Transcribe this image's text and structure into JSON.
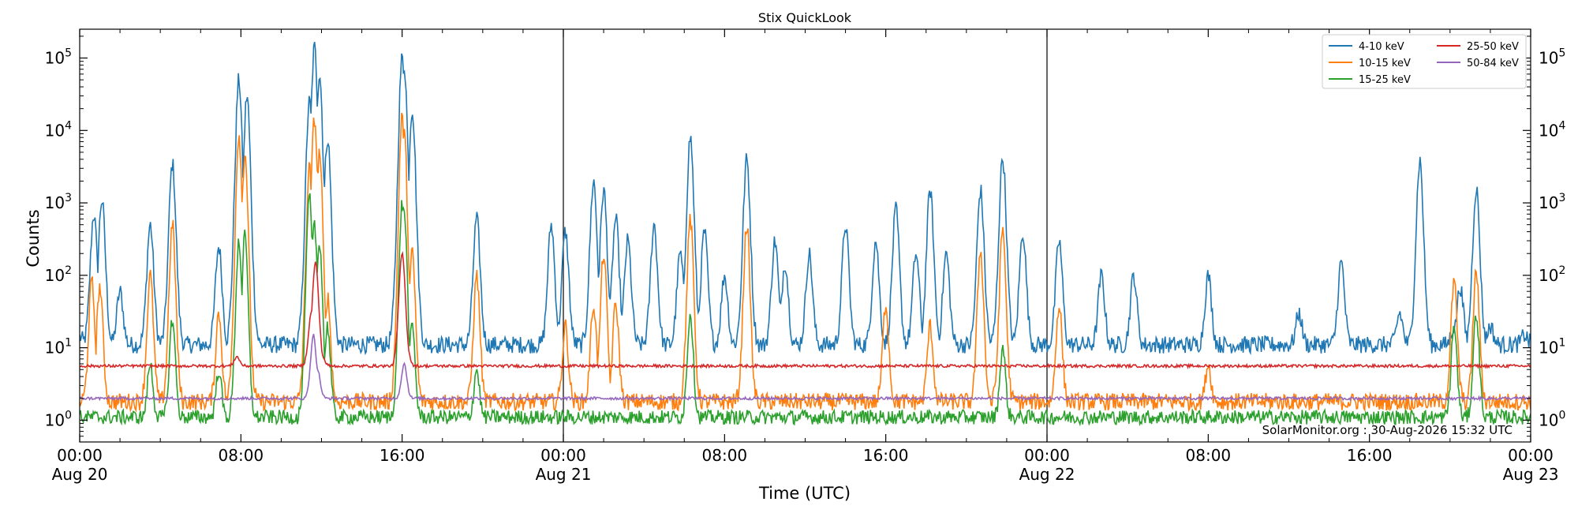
{
  "chart_data": {
    "type": "line",
    "title": "Stix QuickLook",
    "xlabel": "Time (UTC)",
    "ylabel": "Counts",
    "yscale": "log",
    "ylim": [
      0.5,
      250000
    ],
    "xlim_hours": [
      0,
      72
    ],
    "grid": false,
    "legend_position": "top-right",
    "x_ticks": [
      {
        "hour": 0,
        "time": "00:00",
        "date": "Aug 20"
      },
      {
        "hour": 8,
        "time": "08:00",
        "date": ""
      },
      {
        "hour": 16,
        "time": "16:00",
        "date": ""
      },
      {
        "hour": 24,
        "time": "00:00",
        "date": "Aug 21"
      },
      {
        "hour": 32,
        "time": "08:00",
        "date": ""
      },
      {
        "hour": 40,
        "time": "16:00",
        "date": ""
      },
      {
        "hour": 48,
        "time": "00:00",
        "date": "Aug 22"
      },
      {
        "hour": 56,
        "time": "08:00",
        "date": ""
      },
      {
        "hour": 64,
        "time": "16:00",
        "date": ""
      },
      {
        "hour": 72,
        "time": "00:00",
        "date": "Aug 23"
      }
    ],
    "y_ticks": [
      {
        "value": 1,
        "exp": "0"
      },
      {
        "value": 10,
        "exp": "1"
      },
      {
        "value": 100,
        "exp": "2"
      },
      {
        "value": 1000,
        "exp": "3"
      },
      {
        "value": 10000,
        "exp": "4"
      },
      {
        "value": 100000,
        "exp": "5"
      }
    ],
    "day_boundaries_hours": [
      24,
      48
    ],
    "series": [
      {
        "name": "4-10 keV",
        "color": "#1f77b4",
        "baseline": 11,
        "noise": 0.12,
        "x": [
          0,
          0.5,
          0.7,
          1.1,
          2,
          3.5,
          4.6,
          6.9,
          7.9,
          8.3,
          11.4,
          11.65,
          11.9,
          12.3,
          16,
          16.1,
          16.5,
          19.7,
          23.4,
          24.1,
          25.5,
          26,
          26.6,
          27.2,
          28.5,
          29.8,
          30.3,
          31,
          32,
          33.1,
          34.5,
          35,
          36.2,
          38,
          39.5,
          40.5,
          41.5,
          42.2,
          43,
          44.7,
          45.8,
          46.8,
          48.6,
          50.7,
          52.3,
          56,
          60.5,
          62.6,
          65.5,
          66.5,
          68.2,
          68.5,
          69.3,
          70,
          71.7,
          72
        ],
        "y": [
          14,
          25,
          700,
          1100,
          60,
          500,
          3500,
          250,
          50000,
          30000,
          25000,
          140000,
          60000,
          8000,
          100000,
          80000,
          20000,
          600,
          500,
          400,
          2000,
          1500,
          600,
          300,
          500,
          200,
          8000,
          400,
          100,
          4000,
          300,
          150,
          200,
          500,
          300,
          800,
          200,
          1500,
          200,
          1500,
          4300,
          400,
          300,
          100,
          100,
          100,
          30,
          150,
          30,
          3800,
          20,
          70,
          1600,
          20,
          15,
          12
        ],
        "y_end": [
          12
        ]
      },
      {
        "name": "10-15 keV",
        "color": "#ff7f0e",
        "baseline": 1.8,
        "noise": 0.12,
        "x": [
          0.6,
          1,
          3.5,
          4.6,
          6.9,
          7.9,
          8.2,
          11.4,
          11.65,
          11.9,
          12.3,
          16,
          16.1,
          16.5,
          19.7,
          24.1,
          25.5,
          26,
          26.6,
          30.3,
          33.1,
          40,
          42.2,
          44.7,
          45.8,
          48.6,
          56,
          68.2,
          69.3
        ],
        "y": [
          80,
          70,
          100,
          500,
          30,
          9000,
          5000,
          3000,
          15000,
          5000,
          50,
          15000,
          9000,
          200,
          100,
          20,
          40,
          200,
          40,
          600,
          500,
          40,
          20,
          220,
          430,
          40,
          6,
          80,
          110
        ],
        "y_end": [
          1.8
        ]
      },
      {
        "name": "15-25 keV",
        "color": "#2ca02c",
        "baseline": 1.1,
        "noise": 0.1,
        "x": [
          3.5,
          4.6,
          6.9,
          7.9,
          8.2,
          11.4,
          11.65,
          11.9,
          12.3,
          16,
          16.1,
          16.5,
          19.7,
          30.3,
          45.8,
          68.2,
          69.3
        ],
        "y": [
          6,
          25,
          5,
          300,
          350,
          1200,
          500,
          300,
          20,
          1000,
          800,
          20,
          5,
          30,
          10,
          20,
          30
        ],
        "y_end": [
          1.1
        ]
      },
      {
        "name": "25-50 keV",
        "color": "#d62728",
        "baseline": 5.6,
        "noise": 0.02,
        "x": [
          7.8,
          11.5,
          11.7,
          12,
          16,
          16.2
        ],
        "y": [
          7.5,
          30,
          150,
          8,
          200,
          12
        ],
        "y_end": [
          5.6
        ]
      },
      {
        "name": "50-84 keV",
        "color": "#9467bd",
        "baseline": 2.0,
        "noise": 0.02,
        "x": [
          11.6,
          11.8,
          16.1
        ],
        "y": [
          15,
          5,
          6
        ],
        "y_end": [
          2.0
        ]
      }
    ],
    "annotation": "SolarMonitor.org : 30-Aug-2026 15:32 UTC"
  }
}
